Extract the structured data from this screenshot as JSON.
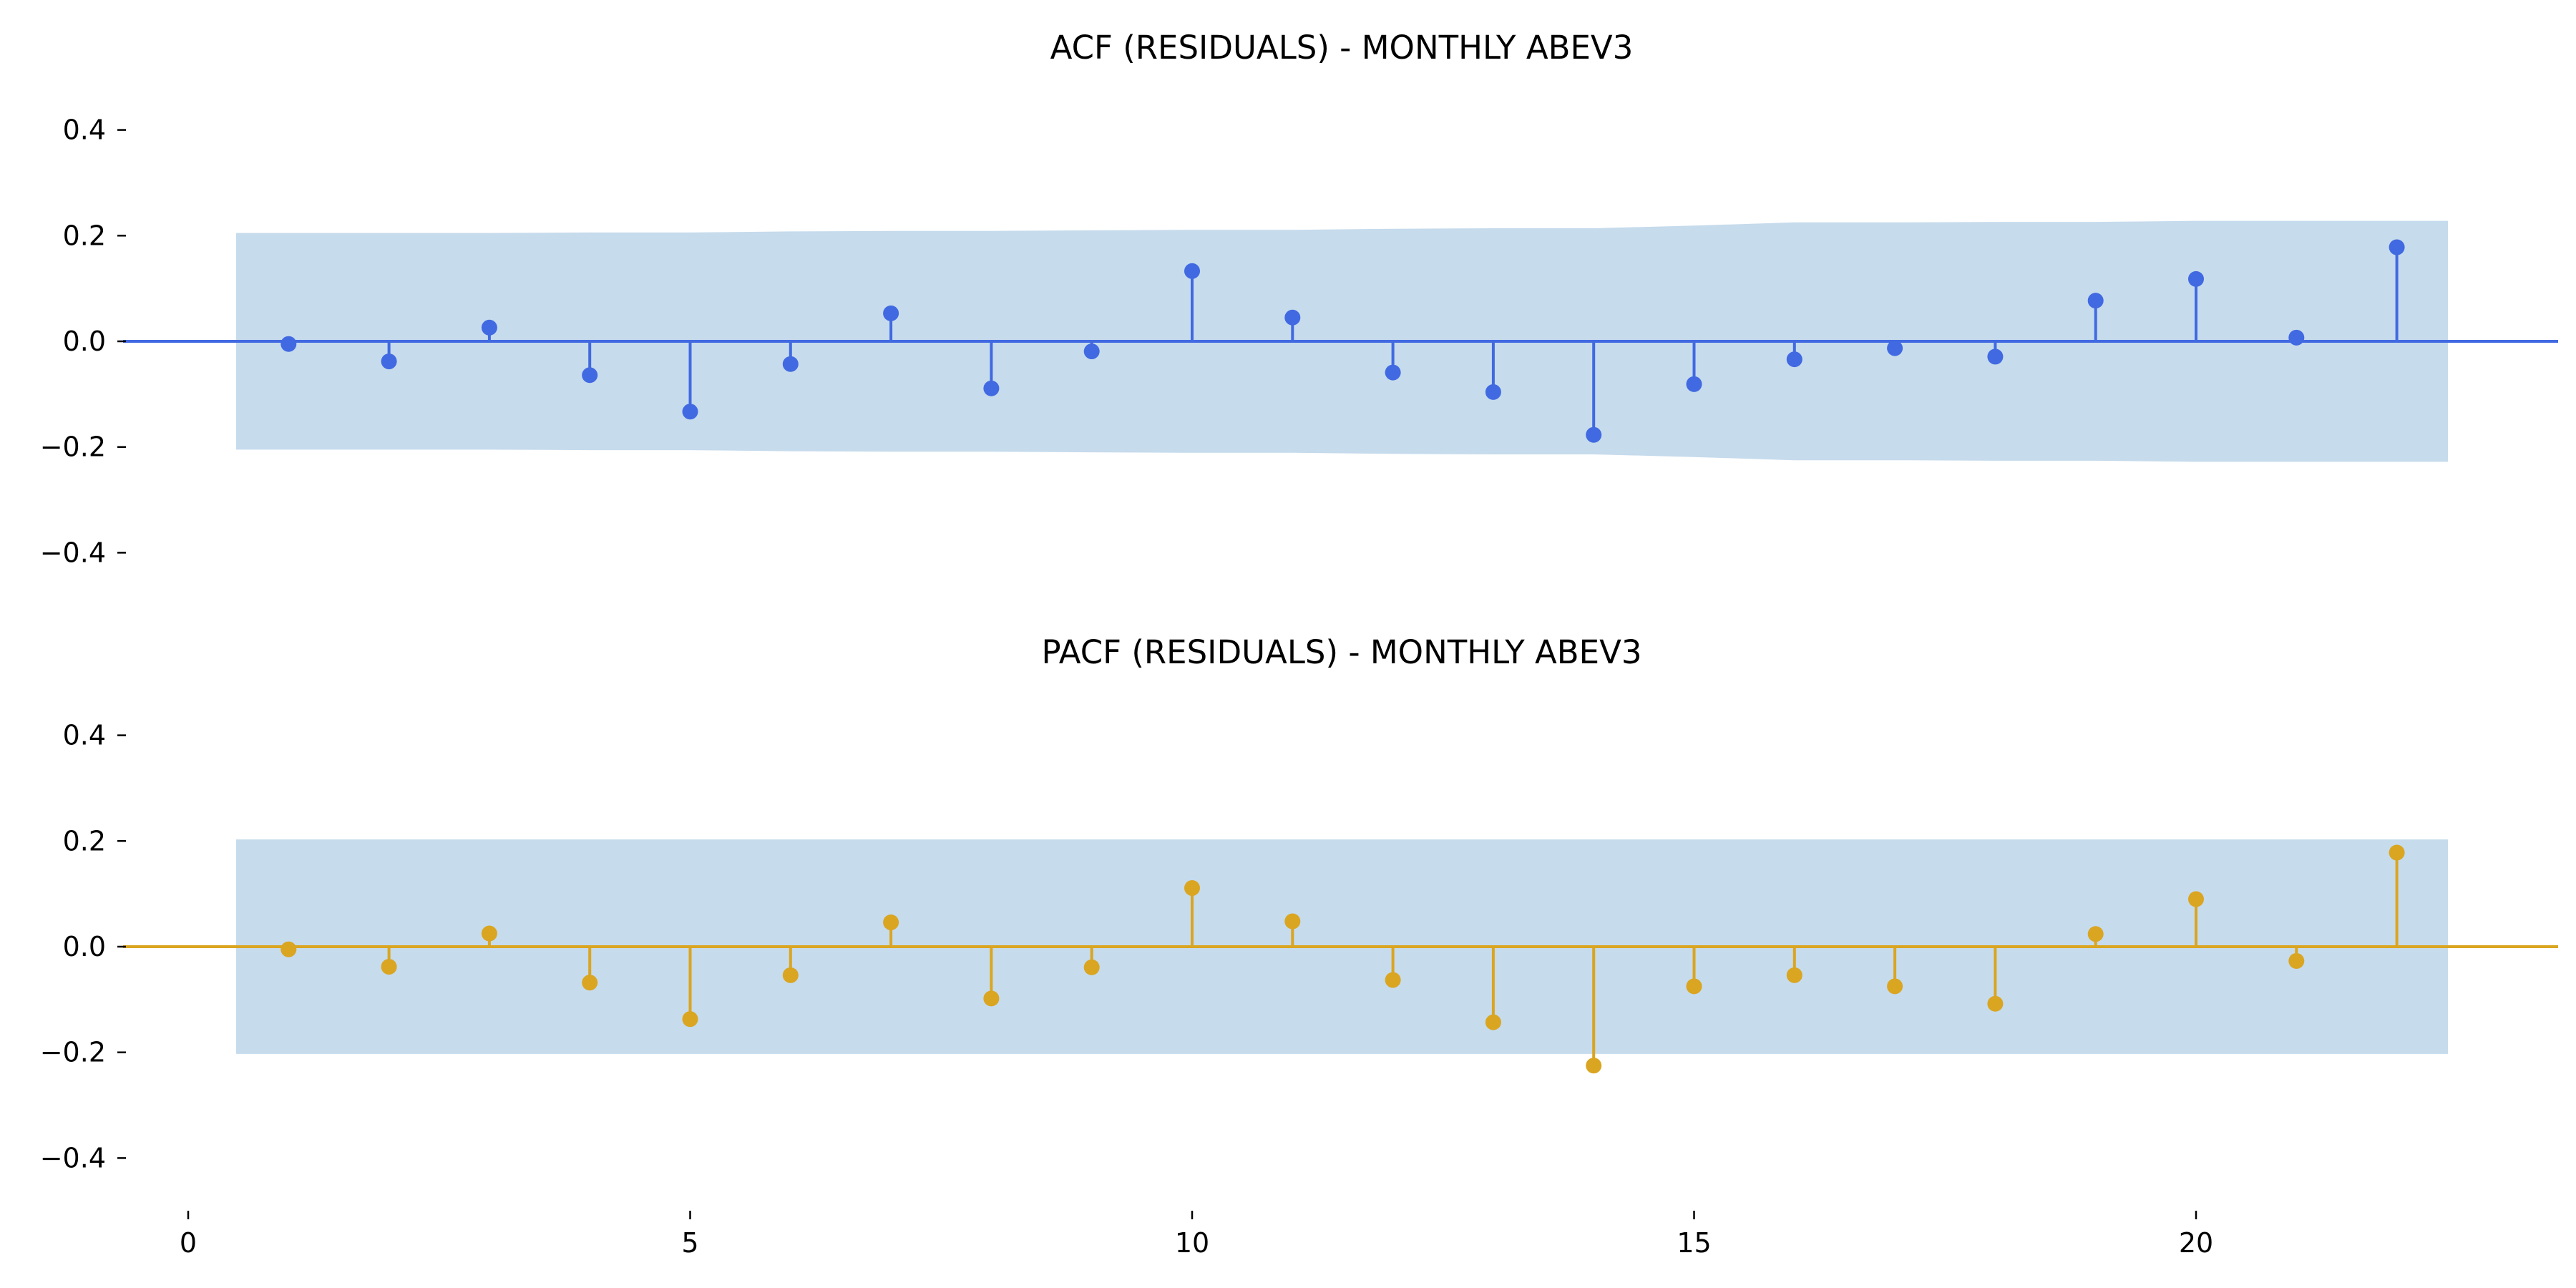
{
  "chart_data": [
    {
      "type": "stem",
      "title": "ACF (RESIDUALS) - MONTHLY ABEV3",
      "xlabel": "",
      "ylabel": "",
      "ylim": [
        -0.48,
        0.48
      ],
      "yticks": [
        -0.4,
        -0.2,
        0.0,
        0.2,
        0.4
      ],
      "ytick_labels": [
        "−0.4",
        "−0.2",
        "0.0",
        "0.2",
        "0.4"
      ],
      "xticks": [],
      "color": "#4169e1",
      "band_color": "#c6dbec",
      "grid": false,
      "lags": [
        1,
        2,
        3,
        4,
        5,
        6,
        7,
        8,
        9,
        10,
        11,
        12,
        13,
        14,
        15,
        16,
        17,
        18,
        19,
        20,
        21,
        22
      ],
      "values": [
        -0.005,
        -0.038,
        0.026,
        -0.064,
        -0.133,
        -0.043,
        0.053,
        -0.089,
        -0.019,
        0.133,
        0.045,
        -0.059,
        -0.096,
        -0.177,
        -0.081,
        -0.034,
        -0.013,
        -0.029,
        0.077,
        0.118,
        0.007,
        0.178
      ],
      "conf_upper": [
        0.205,
        0.205,
        0.205,
        0.206,
        0.206,
        0.208,
        0.209,
        0.209,
        0.21,
        0.211,
        0.211,
        0.213,
        0.214,
        0.214,
        0.219,
        0.225,
        0.225,
        0.226,
        0.226,
        0.228,
        0.228,
        0.228
      ]
    },
    {
      "type": "stem",
      "title": "PACF (RESIDUALS) - MONTHLY ABEV3",
      "xlabel": "",
      "ylabel": "",
      "ylim": [
        -0.48,
        0.48
      ],
      "yticks": [
        -0.4,
        -0.2,
        0.0,
        0.2,
        0.4
      ],
      "ytick_labels": [
        "−0.4",
        "−0.2",
        "0.0",
        "0.2",
        "0.4"
      ],
      "xticks": [
        0,
        5,
        10,
        15,
        20
      ],
      "xtick_labels": [
        "0",
        "5",
        "10",
        "15",
        "20"
      ],
      "color": "#daa520",
      "band_color": "#c6dbec",
      "grid": false,
      "lags": [
        1,
        2,
        3,
        4,
        5,
        6,
        7,
        8,
        9,
        10,
        11,
        12,
        13,
        14,
        15,
        16,
        17,
        18,
        19,
        20,
        21,
        22
      ],
      "values": [
        -0.005,
        -0.038,
        0.025,
        -0.068,
        -0.137,
        -0.054,
        0.046,
        -0.098,
        -0.039,
        0.111,
        0.048,
        -0.063,
        -0.143,
        -0.225,
        -0.075,
        -0.054,
        -0.075,
        -0.108,
        0.024,
        0.09,
        -0.027,
        0.178
      ],
      "conf_upper": [
        0.203,
        0.203,
        0.203,
        0.203,
        0.203,
        0.203,
        0.203,
        0.203,
        0.203,
        0.203,
        0.203,
        0.203,
        0.203,
        0.203,
        0.203,
        0.203,
        0.203,
        0.203,
        0.203,
        0.203,
        0.203,
        0.203
      ]
    }
  ]
}
